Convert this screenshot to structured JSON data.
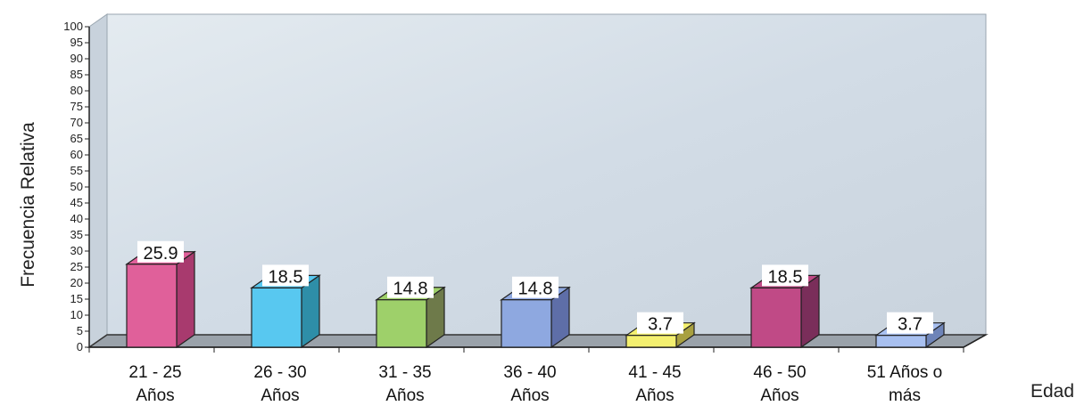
{
  "chart_data": {
    "type": "bar",
    "title": "",
    "xlabel": "Edad",
    "ylabel": "Frecuencia Relativa",
    "ylim": [
      0,
      100
    ],
    "ytick_step": 5,
    "grid": false,
    "categories": [
      [
        "21 - 25",
        "Años"
      ],
      [
        "26 - 30",
        "Años"
      ],
      [
        "31 - 35",
        "Años"
      ],
      [
        "36 - 40",
        "Años"
      ],
      [
        "41 - 45",
        "Años"
      ],
      [
        "46 - 50",
        "Años"
      ],
      [
        "51 Años o",
        "más"
      ]
    ],
    "values": [
      25.9,
      18.5,
      14.8,
      14.8,
      3.7,
      18.5,
      3.7
    ],
    "data_labels": [
      "25.9",
      "18.5",
      "14.8",
      "14.8",
      "3.7",
      "18.5",
      "3.7"
    ],
    "colors": [
      "#e0609a",
      "#58c8f0",
      "#9ed06a",
      "#8ea8e0",
      "#f4f070",
      "#c04a86",
      "#a8c0f0"
    ],
    "side_colors": [
      "#a83a6e",
      "#2e8ea8",
      "#6e7a4a",
      "#5e6ea8",
      "#a8a040",
      "#7a2e5a",
      "#6e84b8"
    ],
    "wall_color": "#d6e0e8",
    "floor_color": "#9aa2aa"
  }
}
